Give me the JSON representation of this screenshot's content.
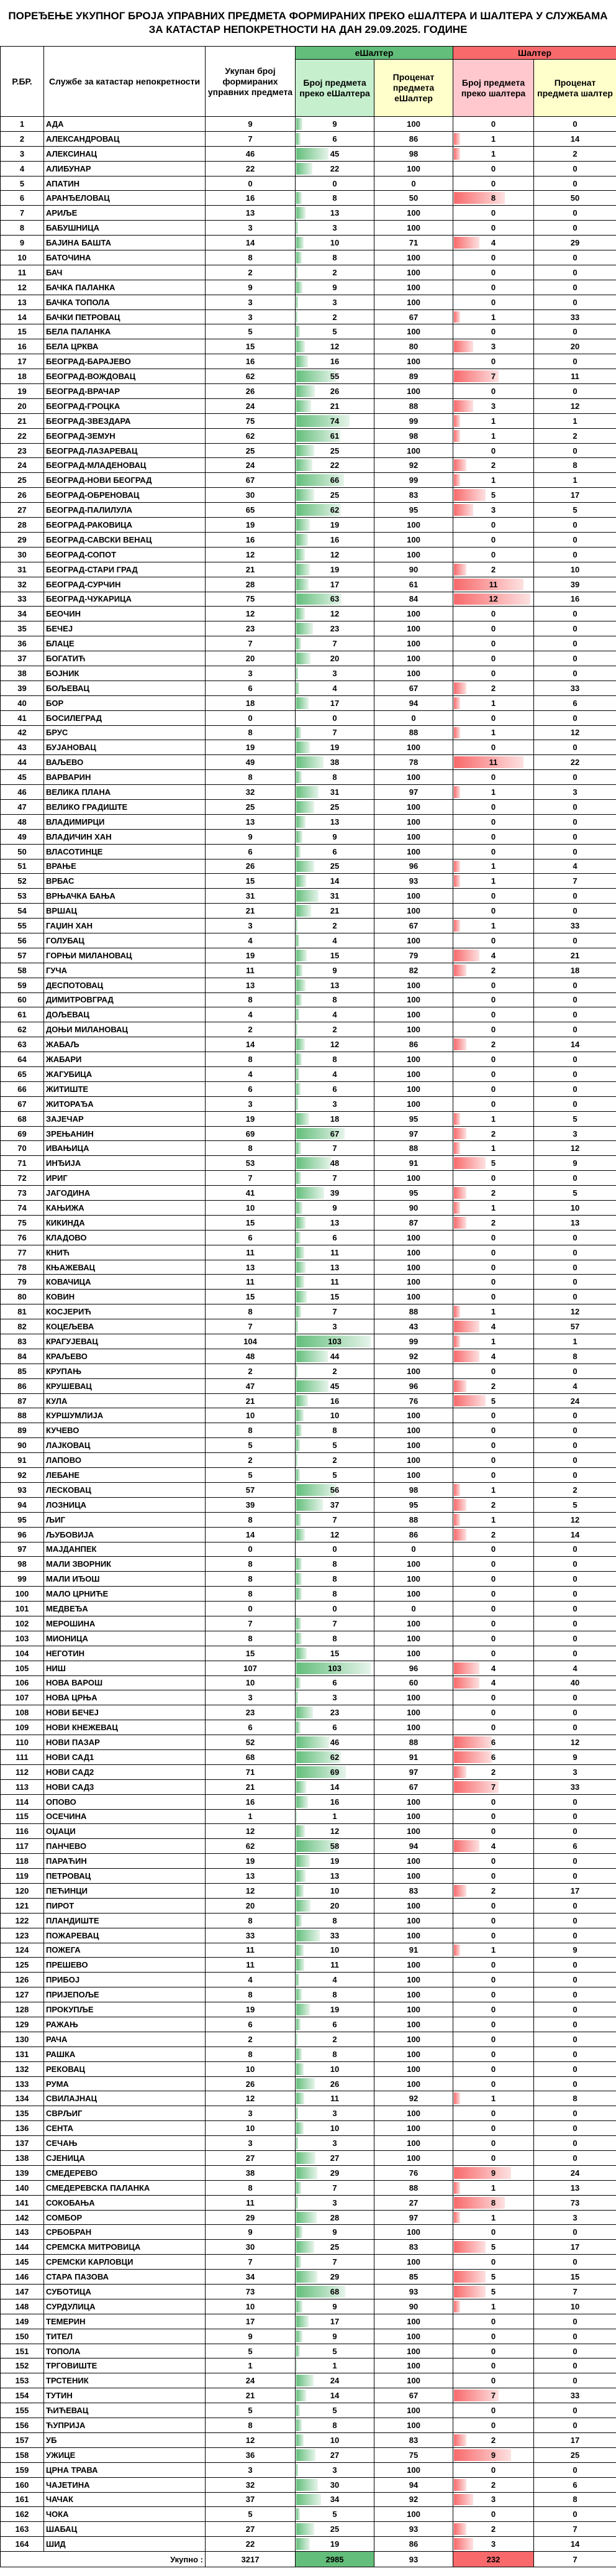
{
  "title": "ПОРЕЂЕЊЕ УКУПНОГ БРОЈА УПРАВНИХ ПРЕДМЕТА ФОРМИРАНИХ ПРЕКО еШАЛТЕРА И ШАЛТЕРА У СЛУЖБАМА ЗА КАТАСТАР НЕПОКРЕТНОСТИ НА ДАН 29.09.2025. ГОДИНЕ",
  "table": {
    "group_headers": [
      "еШалтер",
      "Шалтер"
    ],
    "headers": [
      "Р.БР.",
      "Службе за катастар непокретности",
      "Укупан број формираних управних предмета",
      "Број предмета преко еШалтера",
      "Проценат предмета еШалтер",
      "Број предмета преко шалтера",
      "Проценат предмета шалтер"
    ],
    "rows": [
      [
        1,
        "АДА",
        9,
        9,
        100,
        0,
        0
      ],
      [
        2,
        "АЛЕКСАНДРОВАЦ",
        7,
        6,
        86,
        1,
        14
      ],
      [
        3,
        "АЛЕКСИНАЦ",
        46,
        45,
        98,
        1,
        2
      ],
      [
        4,
        "АЛИБУНАР",
        22,
        22,
        100,
        0,
        0
      ],
      [
        5,
        "АПАТИН",
        0,
        0,
        0,
        0,
        0
      ],
      [
        6,
        "АРАНЂЕЛОВАЦ",
        16,
        8,
        50,
        8,
        50
      ],
      [
        7,
        "АРИЉЕ",
        13,
        13,
        100,
        0,
        0
      ],
      [
        8,
        "БАБУШНИЦА",
        3,
        3,
        100,
        0,
        0
      ],
      [
        9,
        "БАЈИНА БАШТА",
        14,
        10,
        71,
        4,
        29
      ],
      [
        10,
        "БАТОЧИНА",
        8,
        8,
        100,
        0,
        0
      ],
      [
        11,
        "БАЧ",
        2,
        2,
        100,
        0,
        0
      ],
      [
        12,
        "БАЧКА ПАЛАНКА",
        9,
        9,
        100,
        0,
        0
      ],
      [
        13,
        "БАЧКА ТОПОЛА",
        3,
        3,
        100,
        0,
        0
      ],
      [
        14,
        "БАЧКИ ПЕТРОВАЦ",
        3,
        2,
        67,
        1,
        33
      ],
      [
        15,
        "БЕЛА ПАЛАНКА",
        5,
        5,
        100,
        0,
        0
      ],
      [
        16,
        "БЕЛА ЦРКВА",
        15,
        12,
        80,
        3,
        20
      ],
      [
        17,
        "БЕОГРАД-БАРАЈЕВО",
        16,
        16,
        100,
        0,
        0
      ],
      [
        18,
        "БЕОГРАД-ВОЖДОВАЦ",
        62,
        55,
        89,
        7,
        11
      ],
      [
        19,
        "БЕОГРАД-ВРАЧАР",
        26,
        26,
        100,
        0,
        0
      ],
      [
        20,
        "БЕОГРАД-ГРОЦКА",
        24,
        21,
        88,
        3,
        12
      ],
      [
        21,
        "БЕОГРАД-ЗВЕЗДАРА",
        75,
        74,
        99,
        1,
        1
      ],
      [
        22,
        "БЕОГРАД-ЗЕМУН",
        62,
        61,
        98,
        1,
        2
      ],
      [
        23,
        "БЕОГРАД-ЛАЗАРЕВАЦ",
        25,
        25,
        100,
        0,
        0
      ],
      [
        24,
        "БЕОГРАД-МЛАДЕНОВАЦ",
        24,
        22,
        92,
        2,
        8
      ],
      [
        25,
        "БЕОГРАД-НОВИ БЕОГРАД",
        67,
        66,
        99,
        1,
        1
      ],
      [
        26,
        "БЕОГРАД-ОБРЕНОВАЦ",
        30,
        25,
        83,
        5,
        17
      ],
      [
        27,
        "БЕОГРАД-ПАЛИЛУЛА",
        65,
        62,
        95,
        3,
        5
      ],
      [
        28,
        "БЕОГРАД-РАКОВИЦА",
        19,
        19,
        100,
        0,
        0
      ],
      [
        29,
        "БЕОГРАД-САВСКИ ВЕНАЦ",
        16,
        16,
        100,
        0,
        0
      ],
      [
        30,
        "БЕОГРАД-СОПОТ",
        12,
        12,
        100,
        0,
        0
      ],
      [
        31,
        "БЕОГРАД-СТАРИ ГРАД",
        21,
        19,
        90,
        2,
        10
      ],
      [
        32,
        "БЕОГРАД-СУРЧИН",
        28,
        17,
        61,
        11,
        39
      ],
      [
        33,
        "БЕОГРАД-ЧУКАРИЦА",
        75,
        63,
        84,
        12,
        16
      ],
      [
        34,
        "БЕОЧИН",
        12,
        12,
        100,
        0,
        0
      ],
      [
        35,
        "БЕЧЕЈ",
        23,
        23,
        100,
        0,
        0
      ],
      [
        36,
        "БЛАЦЕ",
        7,
        7,
        100,
        0,
        0
      ],
      [
        37,
        "БОГАТИЋ",
        20,
        20,
        100,
        0,
        0
      ],
      [
        38,
        "БОЈНИК",
        3,
        3,
        100,
        0,
        0
      ],
      [
        39,
        "БОЉЕВАЦ",
        6,
        4,
        67,
        2,
        33
      ],
      [
        40,
        "БОР",
        18,
        17,
        94,
        1,
        6
      ],
      [
        41,
        "БОСИЛЕГРАД",
        0,
        0,
        0,
        0,
        0
      ],
      [
        42,
        "БРУС",
        8,
        7,
        88,
        1,
        12
      ],
      [
        43,
        "БУЈАНОВАЦ",
        19,
        19,
        100,
        0,
        0
      ],
      [
        44,
        "ВАЉЕВО",
        49,
        38,
        78,
        11,
        22
      ],
      [
        45,
        "ВАРВАРИН",
        8,
        8,
        100,
        0,
        0
      ],
      [
        46,
        "ВЕЛИКА ПЛАНА",
        32,
        31,
        97,
        1,
        3
      ],
      [
        47,
        "ВЕЛИКО ГРАДИШТЕ",
        25,
        25,
        100,
        0,
        0
      ],
      [
        48,
        "ВЛАДИМИРЦИ",
        13,
        13,
        100,
        0,
        0
      ],
      [
        49,
        "ВЛАДИЧИН ХАН",
        9,
        9,
        100,
        0,
        0
      ],
      [
        50,
        "ВЛАСОТИНЦЕ",
        6,
        6,
        100,
        0,
        0
      ],
      [
        51,
        "ВРАЊЕ",
        26,
        25,
        96,
        1,
        4
      ],
      [
        52,
        "ВРБАС",
        15,
        14,
        93,
        1,
        7
      ],
      [
        53,
        "ВРЊАЧКА БАЊА",
        31,
        31,
        100,
        0,
        0
      ],
      [
        54,
        "ВРШАЦ",
        21,
        21,
        100,
        0,
        0
      ],
      [
        55,
        "ГАЏИН ХАН",
        3,
        2,
        67,
        1,
        33
      ],
      [
        56,
        "ГОЛУБАЦ",
        4,
        4,
        100,
        0,
        0
      ],
      [
        57,
        "ГОРЊИ МИЛАНОВАЦ",
        19,
        15,
        79,
        4,
        21
      ],
      [
        58,
        "ГУЧА",
        11,
        9,
        82,
        2,
        18
      ],
      [
        59,
        "ДЕСПОТОВАЦ",
        13,
        13,
        100,
        0,
        0
      ],
      [
        60,
        "ДИМИТРОВГРАД",
        8,
        8,
        100,
        0,
        0
      ],
      [
        61,
        "ДОЉЕВАЦ",
        4,
        4,
        100,
        0,
        0
      ],
      [
        62,
        "ДОЊИ МИЛАНОВАЦ",
        2,
        2,
        100,
        0,
        0
      ],
      [
        63,
        "ЖАБАЉ",
        14,
        12,
        86,
        2,
        14
      ],
      [
        64,
        "ЖАБАРИ",
        8,
        8,
        100,
        0,
        0
      ],
      [
        65,
        "ЖАГУБИЦА",
        4,
        4,
        100,
        0,
        0
      ],
      [
        66,
        "ЖИТИШТЕ",
        6,
        6,
        100,
        0,
        0
      ],
      [
        67,
        "ЖИТОРАЂА",
        3,
        3,
        100,
        0,
        0
      ],
      [
        68,
        "ЗАЈЕЧАР",
        19,
        18,
        95,
        1,
        5
      ],
      [
        69,
        "ЗРЕЊАНИН",
        69,
        67,
        97,
        2,
        3
      ],
      [
        70,
        "ИВАЊИЦА",
        8,
        7,
        88,
        1,
        12
      ],
      [
        71,
        "ИНЂИЈА",
        53,
        48,
        91,
        5,
        9
      ],
      [
        72,
        "ИРИГ",
        7,
        7,
        100,
        0,
        0
      ],
      [
        73,
        "ЈАГОДИНА",
        41,
        39,
        95,
        2,
        5
      ],
      [
        74,
        "КАЊИЖА",
        10,
        9,
        90,
        1,
        10
      ],
      [
        75,
        "КИКИНДА",
        15,
        13,
        87,
        2,
        13
      ],
      [
        76,
        "КЛАДОВО",
        6,
        6,
        100,
        0,
        0
      ],
      [
        77,
        "КНИЋ",
        11,
        11,
        100,
        0,
        0
      ],
      [
        78,
        "КЊАЖЕВАЦ",
        13,
        13,
        100,
        0,
        0
      ],
      [
        79,
        "КОВАЧИЦА",
        11,
        11,
        100,
        0,
        0
      ],
      [
        80,
        "КОВИН",
        15,
        15,
        100,
        0,
        0
      ],
      [
        81,
        "КОСЈЕРИЋ",
        8,
        7,
        88,
        1,
        12
      ],
      [
        82,
        "КОЦЕЉЕВА",
        7,
        3,
        43,
        4,
        57
      ],
      [
        83,
        "КРАГУЈЕВАЦ",
        104,
        103,
        99,
        1,
        1
      ],
      [
        84,
        "КРАЉЕВО",
        48,
        44,
        92,
        4,
        8
      ],
      [
        85,
        "КРУПАЊ",
        2,
        2,
        100,
        0,
        0
      ],
      [
        86,
        "КРУШЕВАЦ",
        47,
        45,
        96,
        2,
        4
      ],
      [
        87,
        "КУЛА",
        21,
        16,
        76,
        5,
        24
      ],
      [
        88,
        "КУРШУМЛИЈА",
        10,
        10,
        100,
        0,
        0
      ],
      [
        89,
        "КУЧЕВО",
        8,
        8,
        100,
        0,
        0
      ],
      [
        90,
        "ЛАЈКОВАЦ",
        5,
        5,
        100,
        0,
        0
      ],
      [
        91,
        "ЛАПОВО",
        2,
        2,
        100,
        0,
        0
      ],
      [
        92,
        "ЛЕБАНЕ",
        5,
        5,
        100,
        0,
        0
      ],
      [
        93,
        "ЛЕСКОВАЦ",
        57,
        56,
        98,
        1,
        2
      ],
      [
        94,
        "ЛОЗНИЦА",
        39,
        37,
        95,
        2,
        5
      ],
      [
        95,
        "ЉИГ",
        8,
        7,
        88,
        1,
        12
      ],
      [
        96,
        "ЉУБОВИЈА",
        14,
        12,
        86,
        2,
        14
      ],
      [
        97,
        "МАЈДАНПЕК",
        0,
        0,
        0,
        0,
        0
      ],
      [
        98,
        "МАЛИ ЗВОРНИК",
        8,
        8,
        100,
        0,
        0
      ],
      [
        99,
        "МАЛИ ИЂОШ",
        8,
        8,
        100,
        0,
        0
      ],
      [
        100,
        "МАЛО ЦРНИЋЕ",
        8,
        8,
        100,
        0,
        0
      ],
      [
        101,
        "МЕДВЕЂА",
        0,
        0,
        0,
        0,
        0
      ],
      [
        102,
        "МЕРОШИНА",
        7,
        7,
        100,
        0,
        0
      ],
      [
        103,
        "МИОНИЦА",
        8,
        8,
        100,
        0,
        0
      ],
      [
        104,
        "НЕГОТИН",
        15,
        15,
        100,
        0,
        0
      ],
      [
        105,
        "НИШ",
        107,
        103,
        96,
        4,
        4
      ],
      [
        106,
        "НОВА ВАРОШ",
        10,
        6,
        60,
        4,
        40
      ],
      [
        107,
        "НОВА ЦРЊА",
        3,
        3,
        100,
        0,
        0
      ],
      [
        108,
        "НОВИ БЕЧЕЈ",
        23,
        23,
        100,
        0,
        0
      ],
      [
        109,
        "НОВИ КНЕЖЕВАЦ",
        6,
        6,
        100,
        0,
        0
      ],
      [
        110,
        "НОВИ ПАЗАР",
        52,
        46,
        88,
        6,
        12
      ],
      [
        111,
        "НОВИ САД1",
        68,
        62,
        91,
        6,
        9
      ],
      [
        112,
        "НОВИ САД2",
        71,
        69,
        97,
        2,
        3
      ],
      [
        113,
        "НОВИ САД3",
        21,
        14,
        67,
        7,
        33
      ],
      [
        114,
        "ОПОВО",
        16,
        16,
        100,
        0,
        0
      ],
      [
        115,
        "ОСЕЧИНА",
        1,
        1,
        100,
        0,
        0
      ],
      [
        116,
        "ОЏАЦИ",
        12,
        12,
        100,
        0,
        0
      ],
      [
        117,
        "ПАНЧЕВО",
        62,
        58,
        94,
        4,
        6
      ],
      [
        118,
        "ПАРАЋИН",
        19,
        19,
        100,
        0,
        0
      ],
      [
        119,
        "ПЕТРОВАЦ",
        13,
        13,
        100,
        0,
        0
      ],
      [
        120,
        "ПЕЋИНЦИ",
        12,
        10,
        83,
        2,
        17
      ],
      [
        121,
        "ПИРОТ",
        20,
        20,
        100,
        0,
        0
      ],
      [
        122,
        "ПЛАНДИШТЕ",
        8,
        8,
        100,
        0,
        0
      ],
      [
        123,
        "ПОЖАРЕВАЦ",
        33,
        33,
        100,
        0,
        0
      ],
      [
        124,
        "ПОЖЕГА",
        11,
        10,
        91,
        1,
        9
      ],
      [
        125,
        "ПРЕШЕВО",
        11,
        11,
        100,
        0,
        0
      ],
      [
        126,
        "ПРИБОЈ",
        4,
        4,
        100,
        0,
        0
      ],
      [
        127,
        "ПРИЈЕПОЉЕ",
        8,
        8,
        100,
        0,
        0
      ],
      [
        128,
        "ПРОКУПЉЕ",
        19,
        19,
        100,
        0,
        0
      ],
      [
        129,
        "РАЖАЊ",
        6,
        6,
        100,
        0,
        0
      ],
      [
        130,
        "РАЧА",
        2,
        2,
        100,
        0,
        0
      ],
      [
        131,
        "РАШКА",
        8,
        8,
        100,
        0,
        0
      ],
      [
        132,
        "РЕКОВАЦ",
        10,
        10,
        100,
        0,
        0
      ],
      [
        133,
        "РУМА",
        26,
        26,
        100,
        0,
        0
      ],
      [
        134,
        "СВИЛАЈНАЦ",
        12,
        11,
        92,
        1,
        8
      ],
      [
        135,
        "СВРЉИГ",
        3,
        3,
        100,
        0,
        0
      ],
      [
        136,
        "СЕНТА",
        10,
        10,
        100,
        0,
        0
      ],
      [
        137,
        "СЕЧАЊ",
        3,
        3,
        100,
        0,
        0
      ],
      [
        138,
        "СЈЕНИЦА",
        27,
        27,
        100,
        0,
        0
      ],
      [
        139,
        "СМЕДЕРЕВО",
        38,
        29,
        76,
        9,
        24
      ],
      [
        140,
        "СМЕДЕРЕВСКА ПАЛАНКА",
        8,
        7,
        88,
        1,
        13
      ],
      [
        141,
        "СОКОБАЊА",
        11,
        3,
        27,
        8,
        73
      ],
      [
        142,
        "СОМБОР",
        29,
        28,
        97,
        1,
        3
      ],
      [
        143,
        "СРБОБРАН",
        9,
        9,
        100,
        0,
        0
      ],
      [
        144,
        "СРЕМСКА МИТРОВИЦА",
        30,
        25,
        83,
        5,
        17
      ],
      [
        145,
        "СРЕМСКИ КАРЛОВЦИ",
        7,
        7,
        100,
        0,
        0
      ],
      [
        146,
        "СТАРА ПАЗОВА",
        34,
        29,
        85,
        5,
        15
      ],
      [
        147,
        "СУБОТИЦА",
        73,
        68,
        93,
        5,
        7
      ],
      [
        148,
        "СУРДУЛИЦА",
        10,
        9,
        90,
        1,
        10
      ],
      [
        149,
        "ТЕМЕРИН",
        17,
        17,
        100,
        0,
        0
      ],
      [
        150,
        "ТИТЕЛ",
        9,
        9,
        100,
        0,
        0
      ],
      [
        151,
        "ТОПОЛА",
        5,
        5,
        100,
        0,
        0
      ],
      [
        152,
        "ТРГОВИШТЕ",
        1,
        1,
        100,
        0,
        0
      ],
      [
        153,
        "ТРСТЕНИК",
        24,
        24,
        100,
        0,
        0
      ],
      [
        154,
        "ТУТИН",
        21,
        14,
        67,
        7,
        33
      ],
      [
        155,
        "ЋИЋЕВАЦ",
        5,
        5,
        100,
        0,
        0
      ],
      [
        156,
        "ЋУПРИЈА",
        8,
        8,
        100,
        0,
        0
      ],
      [
        157,
        "УБ",
        12,
        10,
        83,
        2,
        17
      ],
      [
        158,
        "УЖИЦЕ",
        36,
        27,
        75,
        9,
        25
      ],
      [
        159,
        "ЦРНА ТРАВА",
        3,
        3,
        100,
        0,
        0
      ],
      [
        160,
        "ЧАЈЕТИНА",
        32,
        30,
        94,
        2,
        6
      ],
      [
        161,
        "ЧАЧАК",
        37,
        34,
        92,
        3,
        8
      ],
      [
        162,
        "ЧОКА",
        5,
        5,
        100,
        0,
        0
      ],
      [
        163,
        "ШАБАЦ",
        27,
        25,
        93,
        2,
        7
      ],
      [
        164,
        "ШИД",
        22,
        19,
        86,
        3,
        14
      ]
    ],
    "total": [
      "Укупно :",
      3217,
      2985,
      93,
      232,
      7
    ]
  }
}
